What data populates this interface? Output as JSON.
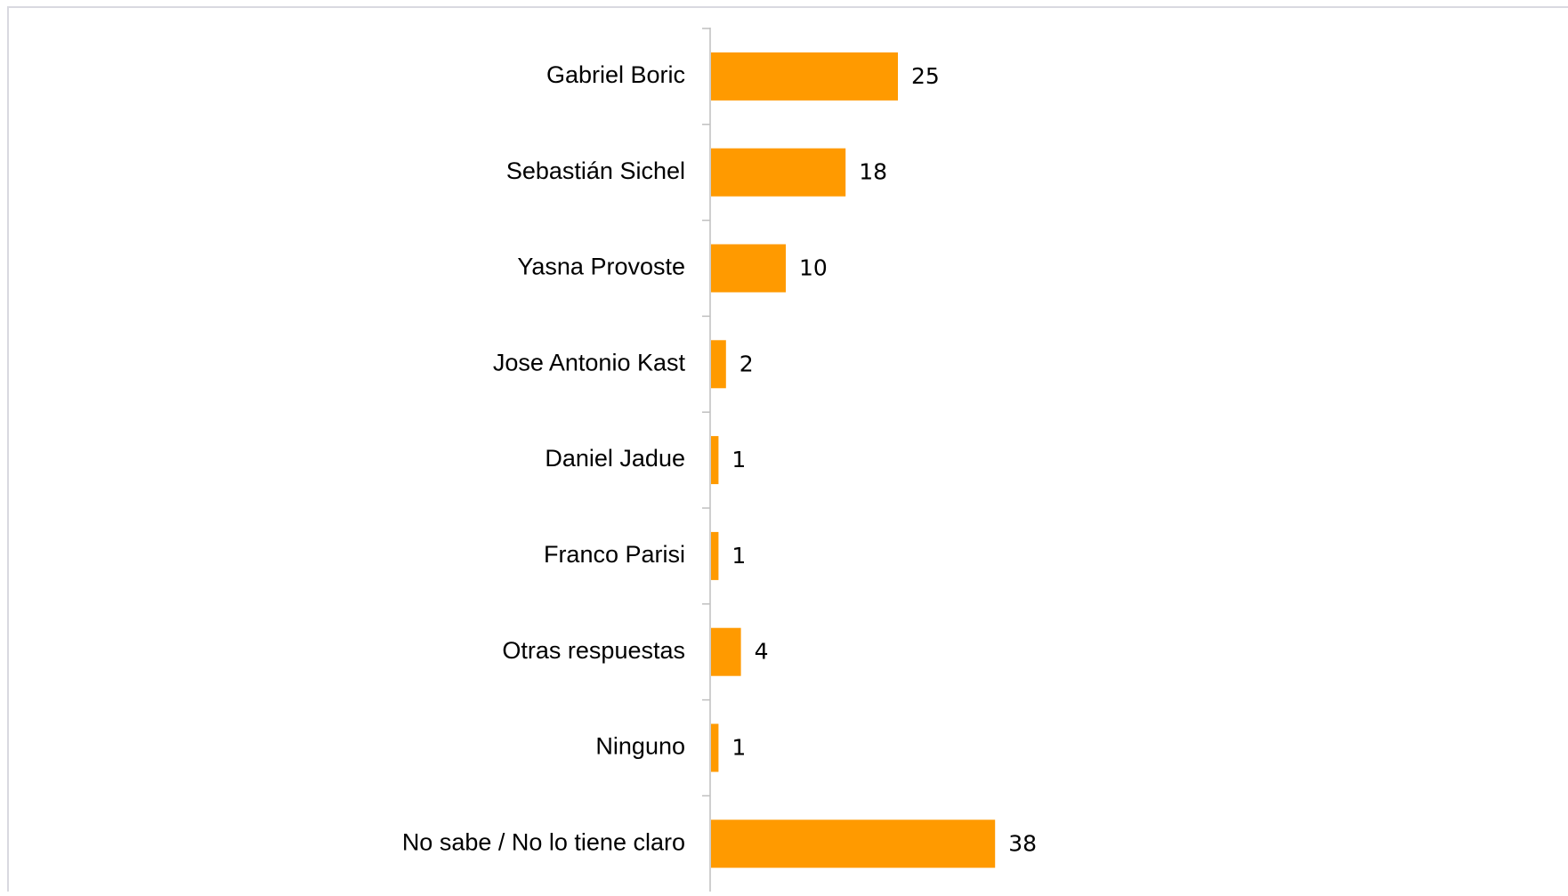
{
  "chart_data": {
    "type": "bar",
    "categories": [
      "Gabriel Boric",
      "Sebastián Sichel",
      "Yasna Provoste",
      "Jose Antonio Kast",
      "Daniel Jadue",
      "Franco Parisi",
      "Otras respuestas",
      "Ninguno",
      "No sabe / No lo tiene claro"
    ],
    "values": [
      25,
      18,
      10,
      2,
      1,
      1,
      4,
      1,
      38
    ],
    "color": "#ff9a00"
  }
}
